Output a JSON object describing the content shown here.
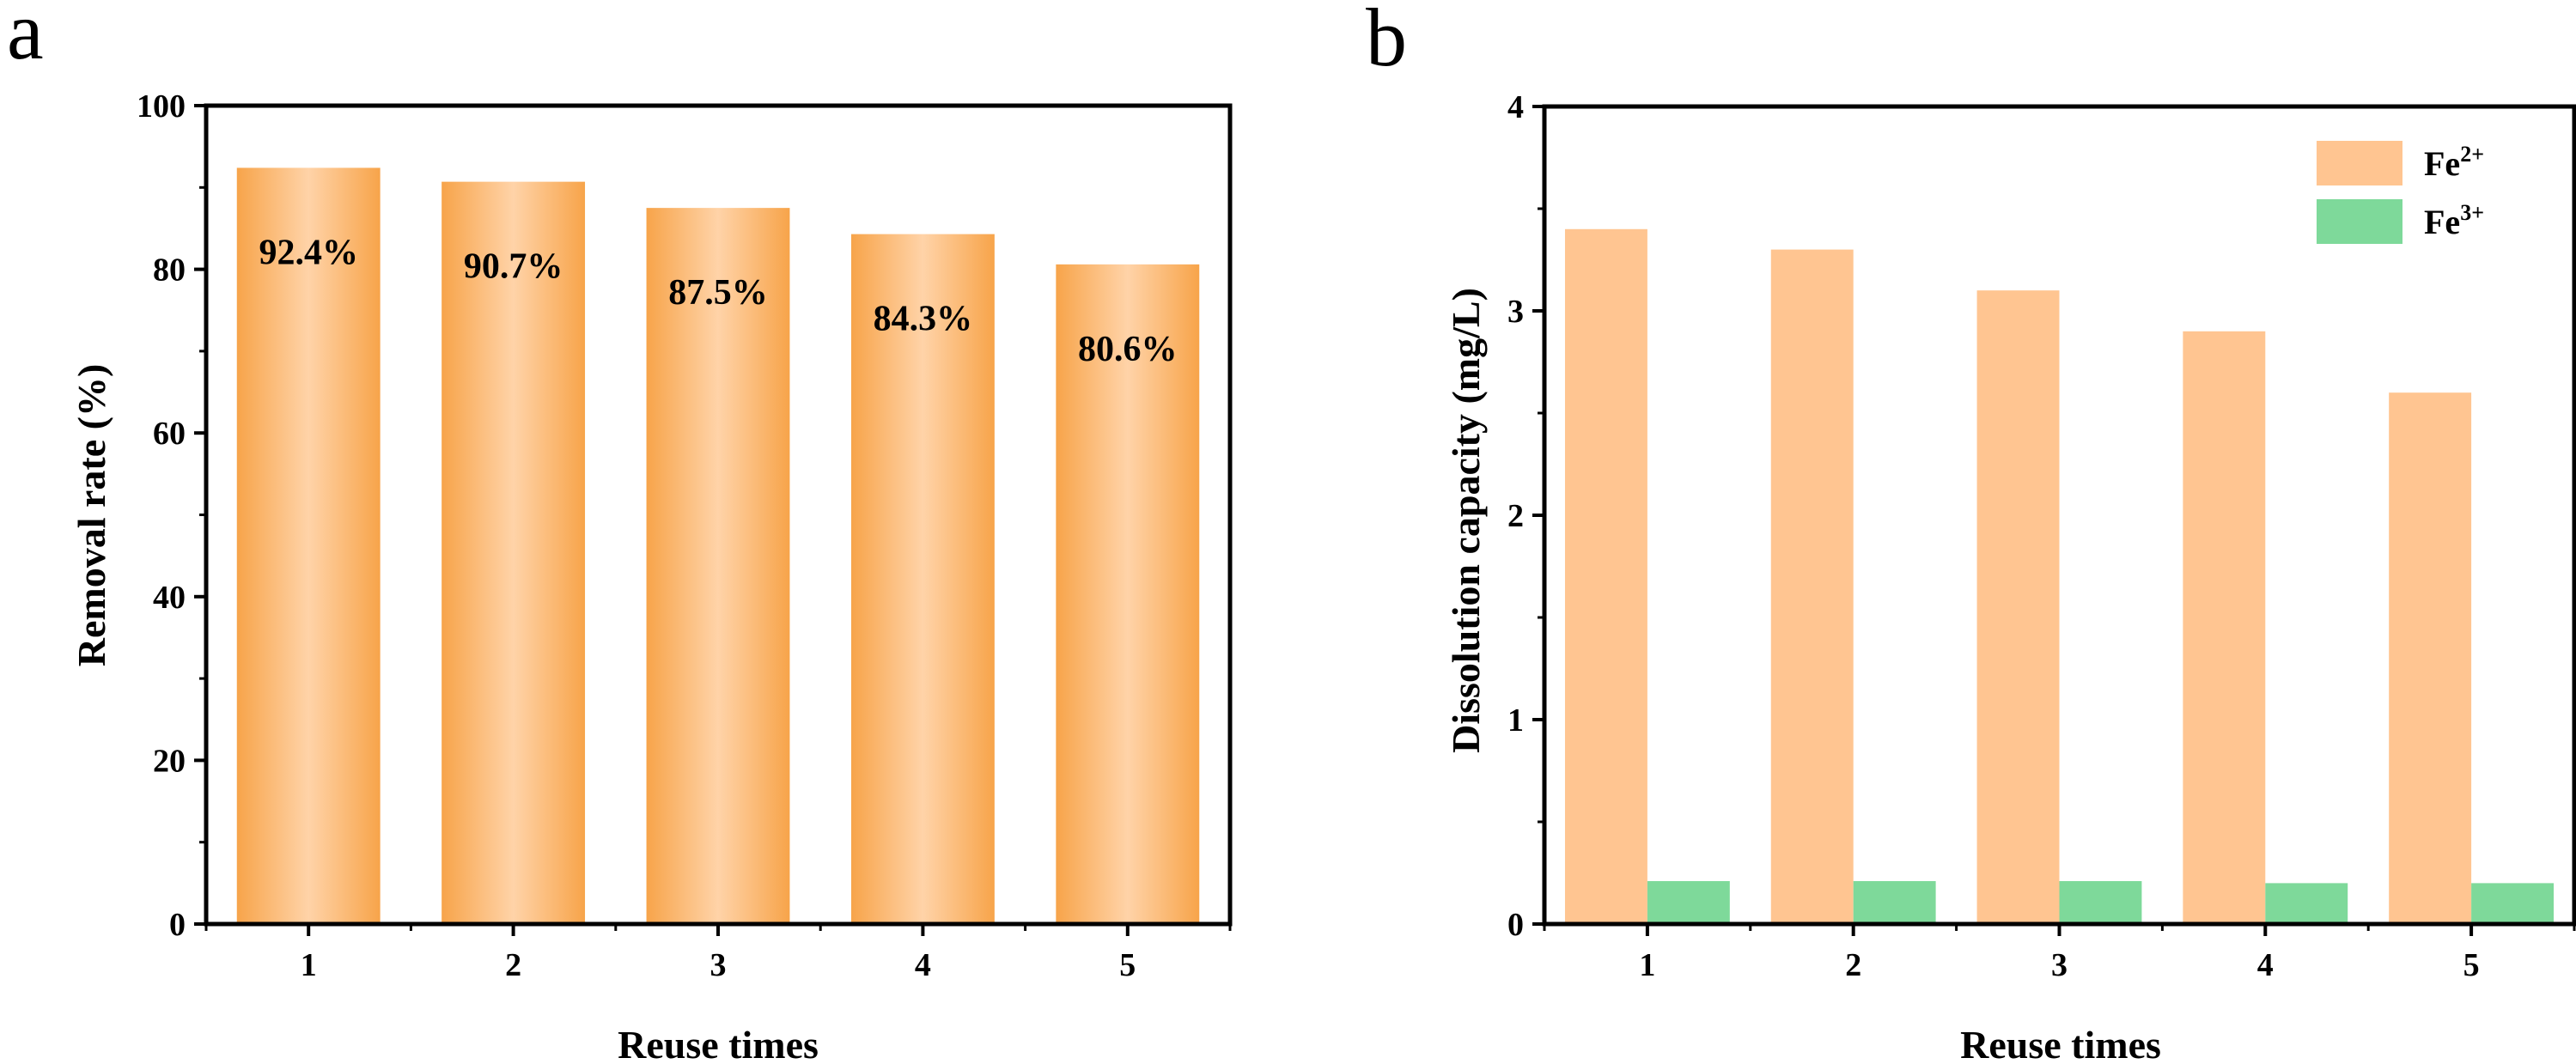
{
  "chart_data": [
    {
      "panel": "a",
      "type": "bar",
      "categories": [
        "1",
        "2",
        "3",
        "4",
        "5"
      ],
      "values": [
        92.4,
        90.7,
        87.5,
        84.3,
        80.6
      ],
      "data_labels": [
        "92.4%",
        "90.7%",
        "87.5%",
        "84.3%",
        "80.6%"
      ],
      "xlabel": "Reuse times",
      "ylabel": "Removal rate (%)",
      "ylim": [
        0,
        100
      ],
      "yticks": [
        0,
        20,
        40,
        60,
        80,
        100
      ],
      "color": "#F7A44A",
      "grid": false
    },
    {
      "panel": "b",
      "type": "bar",
      "categories": [
        "1",
        "2",
        "3",
        "4",
        "5"
      ],
      "series": [
        {
          "name_base": "Fe",
          "name_sup": "2+",
          "values": [
            3.4,
            3.3,
            3.1,
            2.9,
            2.6
          ],
          "color": "#FFC591"
        },
        {
          "name_base": "Fe",
          "name_sup": "3+",
          "values": [
            0.21,
            0.21,
            0.21,
            0.2,
            0.2
          ],
          "color": "#7ED99A"
        }
      ],
      "xlabel": "Reuse times",
      "ylabel": "Dissolution capacity (mg/L)",
      "ylim": [
        0,
        4
      ],
      "yticks": [
        0,
        1,
        2,
        3,
        4
      ],
      "legend": "top-right",
      "grid": false
    }
  ]
}
